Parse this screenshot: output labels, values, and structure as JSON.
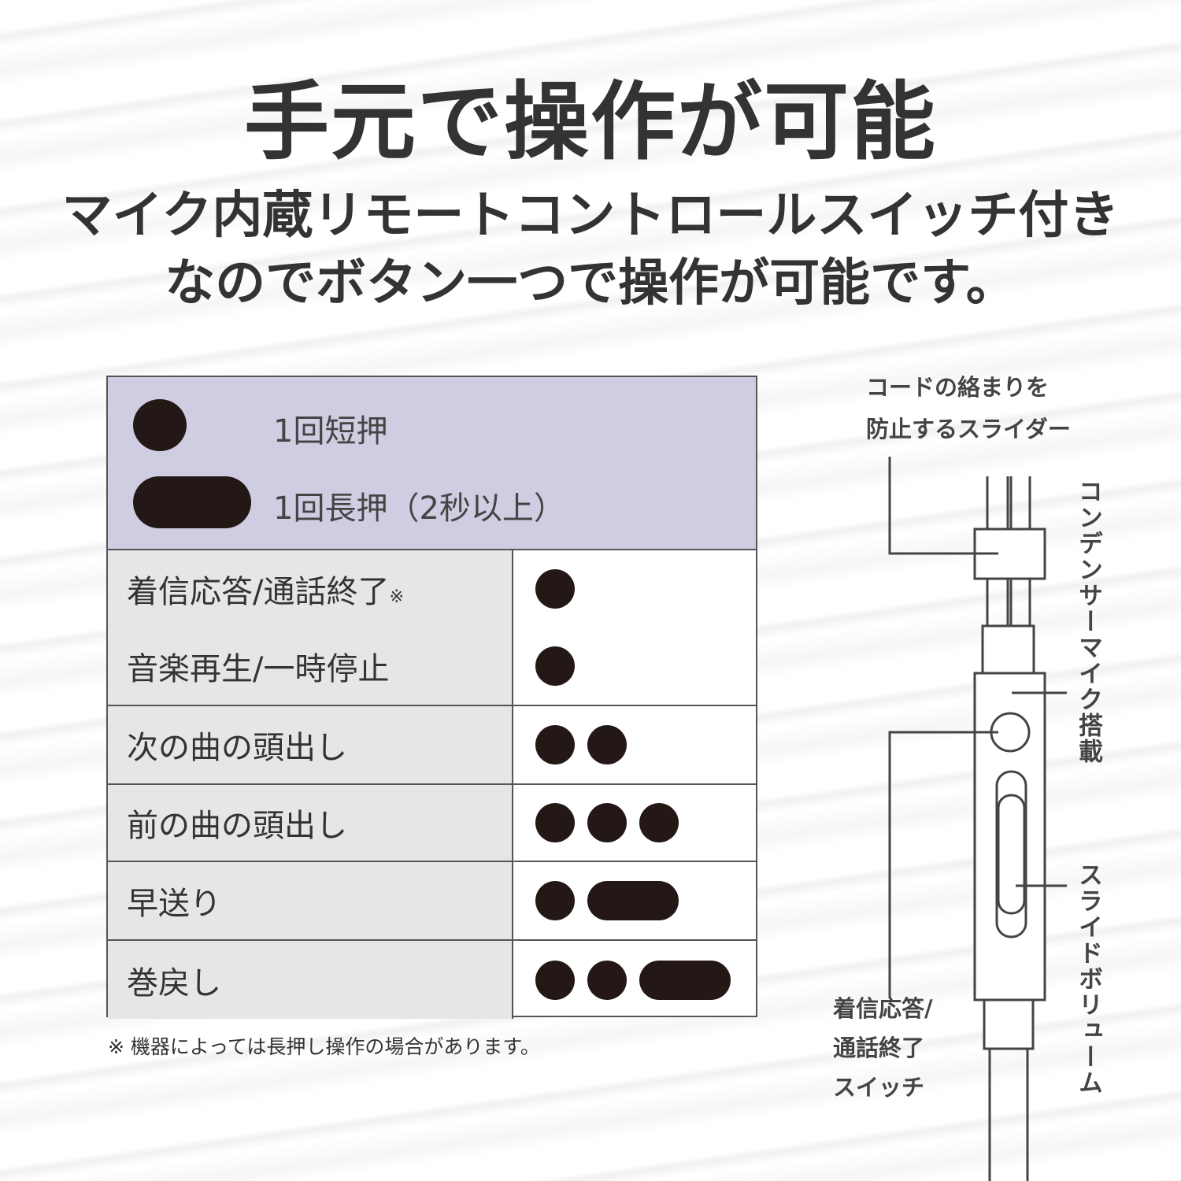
{
  "title": "手元で操作が可能",
  "subtitle": [
    "マイク内蔵リモートコントロールスイッチ付き",
    "なのでボタン一つで操作が可能です。"
  ],
  "legend": {
    "short": "1回短押",
    "long": "1回長押（2秒以上）"
  },
  "rows": [
    {
      "labels": [
        "着信応答/通話終了",
        "音楽再生/一時停止"
      ],
      "note_mark": "※",
      "patterns": [
        [
          "short"
        ],
        [
          "short"
        ]
      ]
    },
    {
      "labels": [
        "次の曲の頭出し"
      ],
      "patterns": [
        [
          "short",
          "short"
        ]
      ]
    },
    {
      "labels": [
        "前の曲の頭出し"
      ],
      "patterns": [
        [
          "short",
          "short",
          "short"
        ]
      ]
    },
    {
      "labels": [
        "早送り"
      ],
      "patterns": [
        [
          "short",
          "long"
        ]
      ]
    },
    {
      "labels": [
        "巻戻し"
      ],
      "patterns": [
        [
          "short",
          "short",
          "long"
        ]
      ]
    }
  ],
  "footnote": "※ 機器によっては長押し操作の場合があります。",
  "diagram": {
    "slider_label": [
      "コードの絡まりを",
      "防止するスライダー"
    ],
    "mic_label": "コンデンサーマイク搭載",
    "volume_label": "スライドボリューム",
    "switch_label": [
      "着信応答/",
      "通話終了",
      "スイッチ"
    ]
  },
  "colors": {
    "dot": "#231815",
    "legend_bg": "#cfcde2",
    "cell_bg": "#e6e6e6",
    "text": "#333333"
  }
}
